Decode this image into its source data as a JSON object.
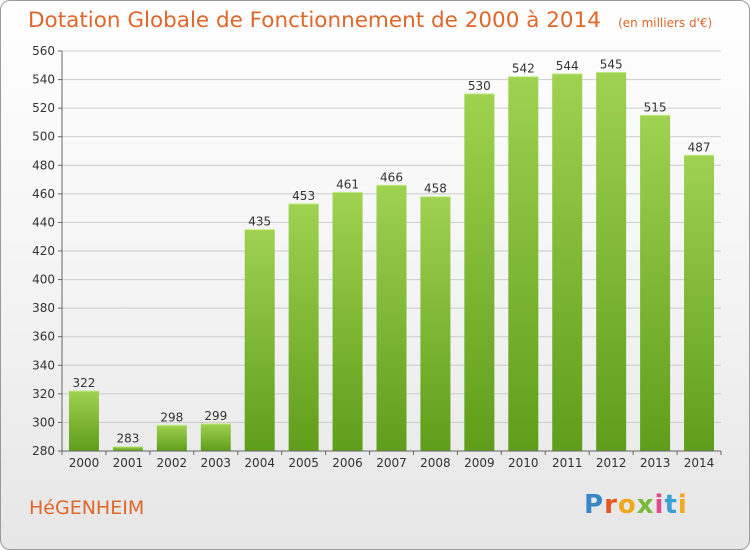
{
  "header": {
    "title": "Dotation Globale de Fonctionnement de 2000 à 2014",
    "unit": "(en milliers d'€)"
  },
  "footer": {
    "commune": "HéGENHEIM",
    "brand": "Proxiti"
  },
  "colors": {
    "bar_top": "#9fd250",
    "bar_bottom": "#5f9e1a",
    "grid": "#cccccc",
    "title": "#e0672a"
  },
  "chart_data": {
    "type": "bar",
    "title": "Dotation Globale de Fonctionnement de 2000 à 2014",
    "ylabel": "",
    "xlabel": "",
    "ylim": [
      280,
      560
    ],
    "ytick_step": 20,
    "grid": true,
    "categories": [
      "2000",
      "2001",
      "2002",
      "2003",
      "2004",
      "2005",
      "2006",
      "2007",
      "2008",
      "2009",
      "2010",
      "2011",
      "2012",
      "2013",
      "2014"
    ],
    "values": [
      322,
      283,
      298,
      299,
      435,
      453,
      461,
      466,
      458,
      530,
      542,
      544,
      545,
      515,
      487
    ]
  }
}
